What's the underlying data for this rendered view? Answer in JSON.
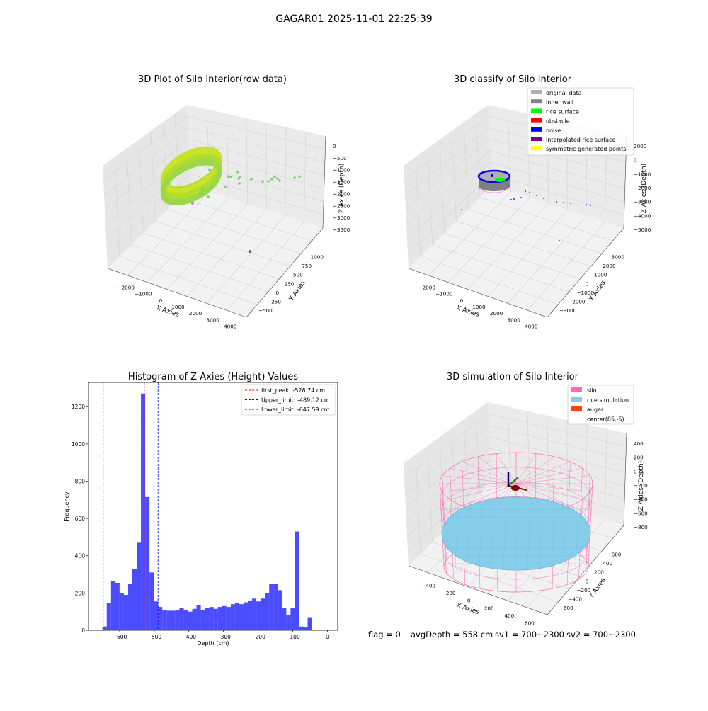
{
  "page": {
    "title": "GAGAR01 2025-11-01 22:25:39",
    "footer": {
      "flag": "flag = 0",
      "avg_depth": "avgDepth = 558 cm",
      "sv1": "sv1 = 700~2300",
      "sv2": "sv2 = 700~2300"
    }
  },
  "colors": {
    "hist_bar": "#0000ff",
    "first_peak_line": "#ff0000",
    "limit_line": "#0000ff",
    "silo_wire": "#ff69b4",
    "rice_sim": "#87ceeb",
    "auger": "#ff4500",
    "grey_original": "#b0b0b0",
    "grey_inner": "#808080",
    "rice_surface": "#00ff00",
    "noise": "#0000ff",
    "interp": "#800080",
    "sym": "#ffff00"
  },
  "chart_data": [
    {
      "type": "scatter3d",
      "title": "3D Plot of Silo Interior(row data)",
      "xlabel": "X Axies",
      "ylabel": "Y Axies",
      "zlabel": "Z Axies (Depth)",
      "x_ticks": [
        "−2000",
        "−1000",
        "0",
        "1000",
        "2000",
        "3000",
        "4000"
      ],
      "y_ticks": [
        "−500",
        "−250",
        "0",
        "250",
        "500",
        "750",
        "1000"
      ],
      "z_ticks": [
        "0",
        "−500",
        "−1000",
        "−1500",
        "−2000",
        "−2500",
        "−3000",
        "−3500"
      ],
      "legend": [],
      "colormap": "viridis-like (green/yellow ring, purple outliers)"
    },
    {
      "type": "scatter3d",
      "title": "3D classify of Silo Interior",
      "xlabel": "X Axies",
      "ylabel": "Y Axies",
      "zlabel": "Z Axies (Depth)",
      "x_ticks": [
        "−2000",
        "−1000",
        "0",
        "1000",
        "2000",
        "3000",
        "4000"
      ],
      "y_ticks": [
        "−3000",
        "−2000",
        "−1000",
        "0",
        "1000",
        "2000",
        "3000"
      ],
      "z_ticks": [
        "2000",
        "0",
        "−1000",
        "−2000",
        "−3000",
        "−4000",
        "−5000"
      ],
      "legend": [
        {
          "label": "original data",
          "color": "#b0b0b0"
        },
        {
          "label": "inner wall",
          "color": "#808080"
        },
        {
          "label": "rice surface",
          "color": "#00ff00"
        },
        {
          "label": "obstacle",
          "color": "#ff0000"
        },
        {
          "label": "noise",
          "color": "#0000ff"
        },
        {
          "label": "interpolated rice surface",
          "color": "#800080"
        },
        {
          "label": "symmetric generated points",
          "color": "#ffff00"
        }
      ],
      "legend_position": "top-right"
    },
    {
      "type": "bar",
      "title": "Histogram of Z-Axies (Height) Values",
      "xlabel": "Depth (cm)",
      "ylabel": "Frequency",
      "xlim": [
        -690,
        30
      ],
      "ylim": [
        0,
        1330
      ],
      "x_ticks": [
        -600,
        -500,
        -400,
        -300,
        -200,
        -100,
        0
      ],
      "y_ticks": [
        0,
        200,
        400,
        600,
        800,
        1000,
        1200
      ],
      "bin_start": -662,
      "bin_width": 12.35,
      "values": [
        2,
        20,
        145,
        265,
        255,
        200,
        190,
        250,
        330,
        470,
        1270,
        715,
        310,
        155,
        125,
        110,
        105,
        105,
        110,
        120,
        110,
        100,
        115,
        135,
        110,
        120,
        125,
        115,
        125,
        130,
        125,
        140,
        145,
        140,
        150,
        160,
        170,
        155,
        170,
        200,
        250,
        250,
        215,
        120,
        80,
        120,
        530,
        20,
        15,
        70
      ],
      "vlines": [
        {
          "label": "first_peak: -528.74 cm",
          "x": -528.74,
          "color": "#ff0000"
        },
        {
          "label": "Upper_limit: -489.12 cm",
          "x": -489.12,
          "color": "#0000ff"
        },
        {
          "label": "Lower_limit: -647.59 cm",
          "x": -647.59,
          "color": "#0000ff"
        }
      ],
      "legend_position": "top-right"
    },
    {
      "type": "surface3d",
      "title": "3D simulation of Silo Interior",
      "xlabel": "X Axies",
      "ylabel": "Y Axies",
      "zlabel": "Z Axies (Depth)",
      "x_ticks": [
        "−400",
        "−200",
        "0",
        "200",
        "400",
        "600"
      ],
      "y_ticks": [
        "−600",
        "−400",
        "−200",
        "0",
        "200",
        "400",
        "600"
      ],
      "z_ticks": [
        "400",
        "200",
        "0",
        "−200",
        "−400",
        "−600",
        "−800"
      ],
      "legend": [
        {
          "label": "silo",
          "color": "#ff69b4"
        },
        {
          "label": "rice simulation",
          "color": "#87ceeb"
        },
        {
          "label": "auger",
          "color": "#ff4500"
        },
        {
          "label": "center(85,-5)",
          "color": ""
        }
      ],
      "legend_position": "top-right"
    }
  ]
}
